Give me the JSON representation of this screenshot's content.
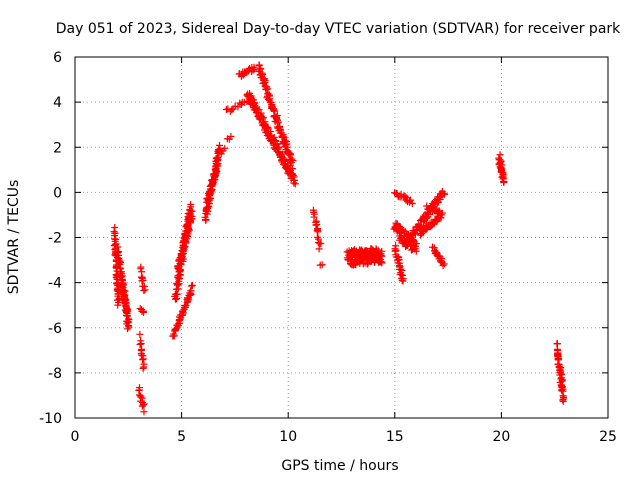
{
  "chart_data": {
    "type": "scatter",
    "title": "Day 051 of 2023, Sidereal Day-to-day VTEC variation (SDTVAR) for receiver park",
    "xlabel": "GPS time / hours",
    "ylabel": "SDTVAR / TECUs",
    "xlim": [
      0,
      25
    ],
    "ylim": [
      -10,
      6
    ],
    "xticks": [
      0,
      5,
      10,
      15,
      20,
      25
    ],
    "yticks": [
      -10,
      -8,
      -6,
      -4,
      -2,
      0,
      2,
      4,
      6
    ],
    "grid": true,
    "marker": "plus",
    "color": "#ff0000",
    "segments": [
      {
        "x0": 1.85,
        "x1": 2.05,
        "y0": -1.8,
        "y1": -5.0,
        "spread": 0.6,
        "n": 60
      },
      {
        "x0": 2.0,
        "x1": 2.5,
        "y0": -2.6,
        "y1": -5.8,
        "spread": 0.5,
        "n": 70
      },
      {
        "x0": 2.2,
        "x1": 2.5,
        "y0": -3.8,
        "y1": -6.0,
        "spread": 0.4,
        "n": 30
      },
      {
        "x0": 3.05,
        "x1": 3.25,
        "y0": -3.4,
        "y1": -4.3,
        "spread": 0.3,
        "n": 12
      },
      {
        "x0": 3.05,
        "x1": 3.25,
        "y0": -5.2,
        "y1": -5.3,
        "spread": 0.1,
        "n": 5
      },
      {
        "x0": 3.05,
        "x1": 3.25,
        "y0": -6.4,
        "y1": -7.8,
        "spread": 0.3,
        "n": 14
      },
      {
        "x0": 3.0,
        "x1": 3.25,
        "y0": -8.7,
        "y1": -9.6,
        "spread": 0.3,
        "n": 14
      },
      {
        "x0": 4.6,
        "x1": 5.5,
        "y0": -6.4,
        "y1": -4.2,
        "spread": 0.2,
        "n": 50
      },
      {
        "x0": 4.7,
        "x1": 5.4,
        "y0": -4.8,
        "y1": -0.6,
        "spread": 0.5,
        "n": 90
      },
      {
        "x0": 4.8,
        "x1": 5.5,
        "y0": -3.5,
        "y1": -0.9,
        "spread": 0.4,
        "n": 60
      },
      {
        "x0": 6.1,
        "x1": 6.8,
        "y0": -1.2,
        "y1": 2.0,
        "spread": 0.4,
        "n": 80
      },
      {
        "x0": 6.2,
        "x1": 6.7,
        "y0": -0.4,
        "y1": 1.2,
        "spread": 0.3,
        "n": 40
      },
      {
        "x0": 6.9,
        "x1": 7.3,
        "y0": 1.7,
        "y1": 2.6,
        "spread": 0.3,
        "n": 6
      },
      {
        "x0": 7.1,
        "x1": 8.2,
        "y0": 3.6,
        "y1": 4.1,
        "spread": 0.2,
        "n": 14
      },
      {
        "x0": 7.7,
        "x1": 8.4,
        "y0": 5.2,
        "y1": 5.5,
        "spread": 0.2,
        "n": 20
      },
      {
        "x0": 8.1,
        "x1": 10.3,
        "y0": 4.4,
        "y1": 0.5,
        "spread": 0.4,
        "n": 140
      },
      {
        "x0": 8.6,
        "x1": 10.2,
        "y0": 5.6,
        "y1": 1.2,
        "spread": 0.4,
        "n": 110
      },
      {
        "x0": 11.2,
        "x1": 11.5,
        "y0": -0.8,
        "y1": -2.4,
        "spread": 0.4,
        "n": 18
      },
      {
        "x0": 11.5,
        "x1": 11.6,
        "y0": -3.2,
        "y1": -3.2,
        "spread": 0.05,
        "n": 2
      },
      {
        "x0": 12.8,
        "x1": 14.4,
        "y0": -2.9,
        "y1": -2.8,
        "spread": 0.7,
        "n": 180
      },
      {
        "x0": 15.0,
        "x1": 15.4,
        "y0": -2.5,
        "y1": -3.9,
        "spread": 0.4,
        "n": 30
      },
      {
        "x0": 15.0,
        "x1": 16.0,
        "y0": -1.6,
        "y1": -2.5,
        "spread": 0.6,
        "n": 70
      },
      {
        "x0": 15.0,
        "x1": 15.8,
        "y0": 0.0,
        "y1": -0.4,
        "spread": 0.2,
        "n": 20
      },
      {
        "x0": 15.5,
        "x1": 17.3,
        "y0": -2.3,
        "y1": 0.0,
        "spread": 0.3,
        "n": 80
      },
      {
        "x0": 16.2,
        "x1": 17.2,
        "y0": -1.8,
        "y1": -1.0,
        "spread": 0.2,
        "n": 40
      },
      {
        "x0": 16.8,
        "x1": 17.3,
        "y0": -2.5,
        "y1": -3.2,
        "spread": 0.2,
        "n": 20
      },
      {
        "x0": 16.5,
        "x1": 17.1,
        "y0": -0.7,
        "y1": -0.9,
        "spread": 0.2,
        "n": 20
      },
      {
        "x0": 19.9,
        "x1": 20.1,
        "y0": 1.5,
        "y1": 0.5,
        "spread": 0.4,
        "n": 30
      },
      {
        "x0": 22.6,
        "x1": 22.9,
        "y0": -6.8,
        "y1": -9.1,
        "spread": 0.5,
        "n": 50
      }
    ]
  }
}
